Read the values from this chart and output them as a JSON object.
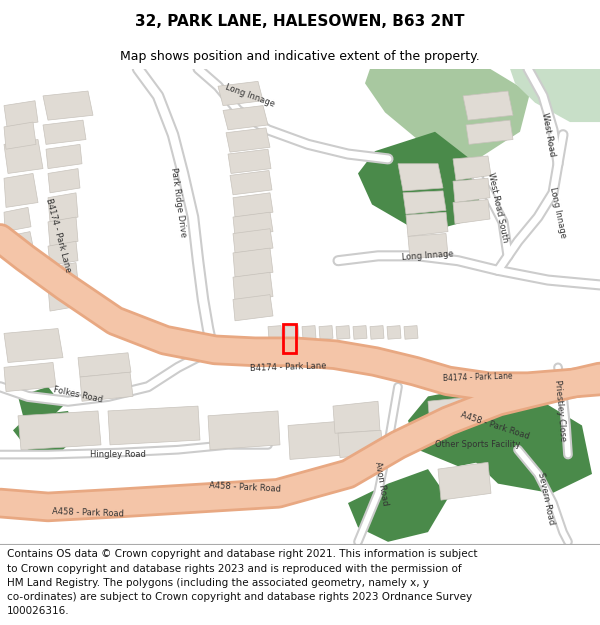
{
  "title": "32, PARK LANE, HALESOWEN, B63 2NT",
  "subtitle": "Map shows position and indicative extent of the property.",
  "footer_lines": [
    "Contains OS data © Crown copyright and database right 2021. This information is subject",
    "to Crown copyright and database rights 2023 and is reproduced with the permission of",
    "HM Land Registry. The polygons (including the associated geometry, namely x, y",
    "co-ordinates) are subject to Crown copyright and database rights 2023 Ordnance Survey",
    "100026316."
  ],
  "bg_color": "#ffffff",
  "map_bg": "#f2efe9",
  "road_major_color": "#f4c5a8",
  "road_major_stroke": "#e8a882",
  "road_minor_color": "#ffffff",
  "road_minor_stroke": "#cccccc",
  "building_fill": "#e0dbd4",
  "building_stroke": "#c8c3bc",
  "green_light": "#a8c8a0",
  "green_mid": "#7aaa7a",
  "green_dark": "#4a8a4a",
  "highlight_color": "#ff0000",
  "title_fontsize": 11,
  "subtitle_fontsize": 9,
  "footer_fontsize": 7.5
}
